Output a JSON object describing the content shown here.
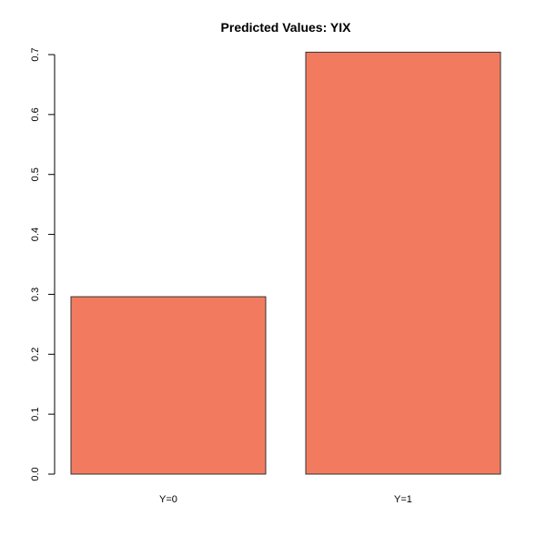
{
  "chart_data": {
    "type": "bar",
    "title": "Predicted Values: YIX",
    "xlabel": "",
    "ylabel": "",
    "categories": [
      "Y=0",
      "Y=1"
    ],
    "values": [
      0.296,
      0.704
    ],
    "ylim": [
      0,
      0.7
    ],
    "yticks": [
      0.0,
      0.1,
      0.2,
      0.3,
      0.4,
      0.5,
      0.6,
      0.7
    ],
    "ytick_labels": [
      "0.0",
      "0.1",
      "0.2",
      "0.3",
      "0.4",
      "0.5",
      "0.6",
      "0.7"
    ],
    "grid": false,
    "bar_color": "#F27B5F",
    "bar_border_color": "#333333"
  }
}
